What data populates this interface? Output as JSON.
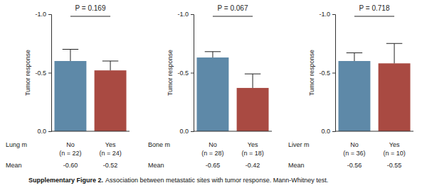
{
  "chart_data": [
    {
      "type": "bar",
      "y_label": "Tumor response",
      "annotation": "P = 0.169",
      "x_label": "Lung m",
      "categories": [
        "No",
        "Yes"
      ],
      "n_labels": [
        "(n = 22)",
        "(n = 24)"
      ],
      "values": [
        -0.6,
        -0.52
      ],
      "errors": [
        0.1,
        0.08
      ],
      "colors": [
        "#5e89a8",
        "#a94a42"
      ],
      "mean_label": "Mean",
      "means": [
        {
          "value": -0.6,
          "label": "-0.60"
        },
        {
          "value": -0.52,
          "label": "-0.52"
        }
      ],
      "ylim": [
        0,
        -1
      ],
      "yticks": [
        {
          "value": -1,
          "label": "-1.0"
        },
        -0.5,
        {
          "value": 0,
          "label": "0.0"
        }
      ]
    },
    {
      "type": "bar",
      "y_label": "Tumor response",
      "annotation": "P = 0.067",
      "x_label": "Bone m",
      "categories": [
        "No",
        "Yes"
      ],
      "n_labels": [
        "(n = 28)",
        "(n = 18)"
      ],
      "values": [
        -0.63,
        -0.37
      ],
      "errors": [
        0.05,
        0.12
      ],
      "colors": [
        "#5e89a8",
        "#a94a42"
      ],
      "mean_label": "Mean",
      "means": [
        {
          "value": -0.65,
          "label": "-0.65"
        },
        {
          "value": -0.42,
          "label": "-0.42"
        }
      ],
      "ylim": [
        0,
        -1
      ],
      "yticks": [
        {
          "value": -1,
          "label": "-1.0"
        },
        -0.5,
        {
          "value": 0,
          "label": "0.0"
        }
      ]
    },
    {
      "type": "bar",
      "y_label": "Tumor response",
      "annotation": "P = 0.718",
      "x_label": "Liver m",
      "categories": [
        "No",
        "Yes"
      ],
      "n_labels": [
        "(n = 36)",
        "(n = 10)"
      ],
      "values": [
        -0.6,
        -0.58
      ],
      "errors": [
        0.07,
        0.17
      ],
      "colors": [
        "#5e89a8",
        "#a94a42"
      ],
      "mean_label": "Mean",
      "means": [
        {
          "value": -0.56,
          "label": "-0.56"
        },
        {
          "value": -0.55,
          "label": "-0.55"
        }
      ],
      "ylim": [
        0,
        -1
      ],
      "yticks": [
        {
          "value": -1,
          "label": "-1.0"
        },
        -0.5,
        {
          "value": 0,
          "label": "0.0"
        }
      ]
    }
  ],
  "caption_label": "Supplementary Figure 2.",
  "caption": "Association between metastatic sites with tumor response. Mann-Whitney test."
}
